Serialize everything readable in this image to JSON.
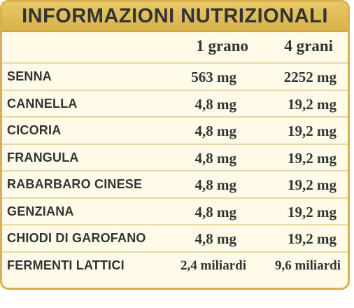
{
  "title": "INFORMAZIONI NUTRIZIONALI",
  "columns": [
    "1 grano",
    "4 grani"
  ],
  "rows": [
    {
      "name": "SENNA",
      "v1": "563 mg",
      "v2": "2252 mg"
    },
    {
      "name": "CANNELLA",
      "v1": "4,8 mg",
      "v2": "19,2 mg"
    },
    {
      "name": "CICORIA",
      "v1": "4,8 mg",
      "v2": "19,2 mg"
    },
    {
      "name": "FRANGULA",
      "v1": "4,8 mg",
      "v2": "19,2 mg"
    },
    {
      "name": "RABARBARO CINESE",
      "v1": "4,8 mg",
      "v2": "19,2 mg"
    },
    {
      "name": "GENZIANA",
      "v1": "4,8 mg",
      "v2": "19,2 mg"
    },
    {
      "name": "CHIODI DI GAROFANO",
      "v1": "4,8 mg",
      "v2": "19,2 mg"
    },
    {
      "name": "FERMENTI LATTICI",
      "v1": "2,4 miliardi",
      "v2": "9,6 miliardi"
    }
  ],
  "colors": {
    "header_bg": "#dcb851",
    "border": "#d7b24e",
    "body_bg": "#fffbe8",
    "text": "#333333"
  }
}
